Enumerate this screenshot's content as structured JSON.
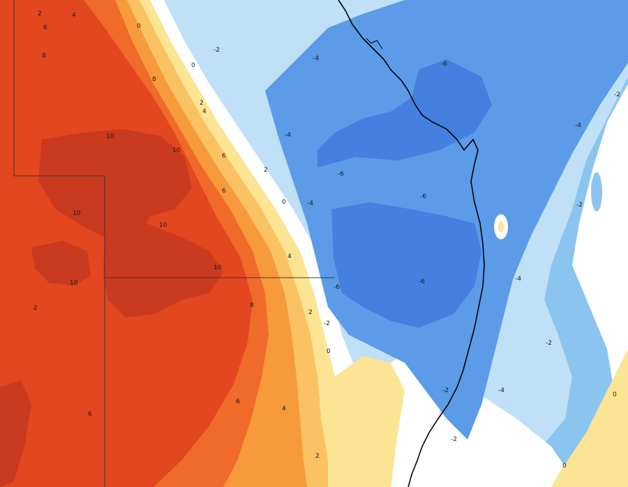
{
  "map": {
    "type": "temperature-anomaly-contour",
    "colors": {
      "warm_10": "#c93a1e",
      "warm_8": "#e2471f",
      "warm_6": "#f06a2a",
      "warm_4": "#f79a3c",
      "warm_2": "#fac262",
      "warm_0": "#fbe494",
      "neutral": "#ffffff",
      "cool_0": "#bfe0f7",
      "cool_2": "#8cc4f0",
      "cool_4": "#5b9be8",
      "cool_6": "#4380e0",
      "coastline": "#000000",
      "border": "#3a3a3a"
    },
    "contour_labels": [
      {
        "text": "2"
      },
      {
        "text": "4"
      },
      {
        "text": "6"
      },
      {
        "text": "8"
      },
      {
        "text": "10"
      },
      {
        "text": "10"
      },
      {
        "text": "10"
      },
      {
        "text": "10"
      },
      {
        "text": "10"
      },
      {
        "text": "10"
      },
      {
        "text": "8"
      },
      {
        "text": "8"
      },
      {
        "text": "6"
      },
      {
        "text": "6"
      },
      {
        "text": "6"
      },
      {
        "text": "6"
      },
      {
        "text": "4"
      },
      {
        "text": "4"
      },
      {
        "text": "4"
      },
      {
        "text": "2"
      },
      {
        "text": "2"
      },
      {
        "text": "2"
      },
      {
        "text": "2"
      },
      {
        "text": "0"
      },
      {
        "text": "0"
      },
      {
        "text": "0"
      },
      {
        "text": "0"
      },
      {
        "text": "-2"
      },
      {
        "text": "-2"
      },
      {
        "text": "-2"
      },
      {
        "text": "-4"
      },
      {
        "text": "-4"
      },
      {
        "text": "-4"
      },
      {
        "text": "-4"
      },
      {
        "text": "-6"
      },
      {
        "text": "-6"
      },
      {
        "text": "-6"
      },
      {
        "text": "-6"
      },
      {
        "text": "-6"
      },
      {
        "text": "-2"
      },
      {
        "text": "-4"
      },
      {
        "text": "-2"
      },
      {
        "text": "0"
      },
      {
        "text": "-2"
      },
      {
        "text": "-4"
      },
      {
        "text": "-2"
      },
      {
        "text": "2"
      },
      {
        "text": "0"
      }
    ]
  }
}
